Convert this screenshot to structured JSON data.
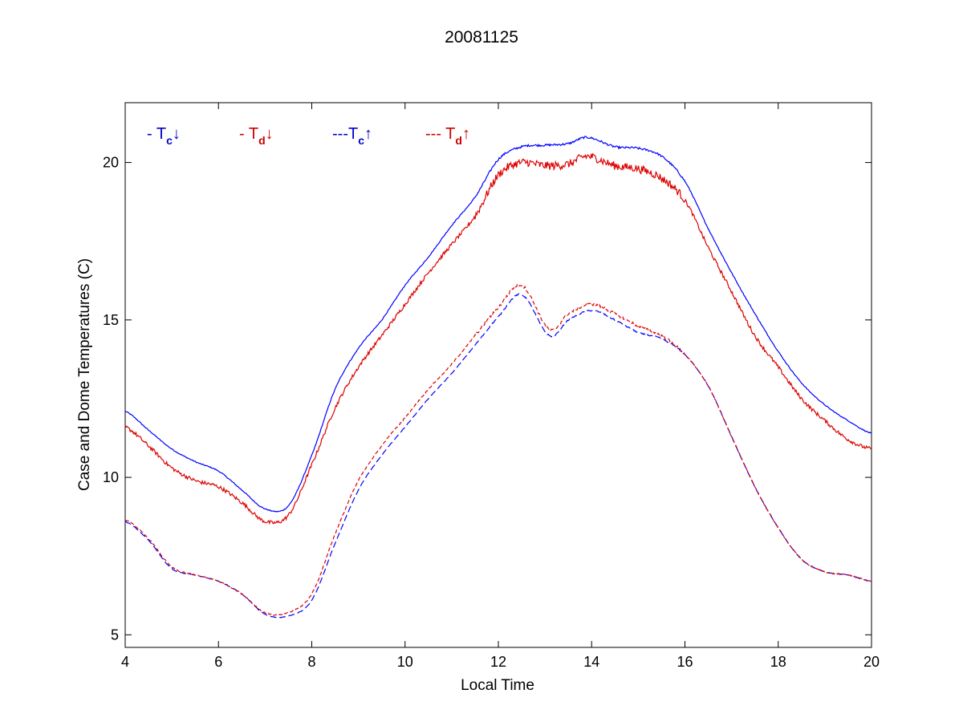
{
  "chart_data": {
    "type": "line",
    "title": "20081125",
    "xlabel": "Local Time",
    "ylabel": "Case and Dome Temperatures (C)",
    "xlim": [
      4,
      20
    ],
    "ylim": [
      4.6,
      21.9
    ],
    "xticks": [
      4,
      6,
      8,
      10,
      12,
      14,
      16,
      18,
      20
    ],
    "yticks": [
      5,
      10,
      15,
      20
    ],
    "grid": false,
    "legend_position": "top-left (horizontal, inside axes)",
    "legend": [
      {
        "prefix": "- T",
        "sub": "c",
        "arrow": "↓",
        "color": "#0000cc"
      },
      {
        "prefix": "- T",
        "sub": "d",
        "arrow": "↓",
        "color": "#cc0000"
      },
      {
        "prefix": "---T",
        "sub": "c",
        "arrow": "↑",
        "color": "#0000cc"
      },
      {
        "prefix": "--- T",
        "sub": "d",
        "arrow": "↑",
        "color": "#cc0000"
      }
    ],
    "series": [
      {
        "color": "#0000ff",
        "dash": "solid",
        "noise": 0.03,
        "x": [
          4,
          4.5,
          5,
          5.5,
          6,
          6.5,
          7,
          7.5,
          8,
          8.5,
          9,
          9.5,
          10,
          10.5,
          11,
          11.5,
          12,
          12.5,
          13,
          13.5,
          13.9,
          14.5,
          15,
          15.5,
          16,
          16.5,
          17,
          17.5,
          18,
          18.5,
          19,
          19.5,
          20
        ],
        "y": [
          12.1,
          11.5,
          10.9,
          10.5,
          10.2,
          9.6,
          9.0,
          9.1,
          10.7,
          12.8,
          14.1,
          15.0,
          16.1,
          17.0,
          18.0,
          18.9,
          20.1,
          20.5,
          20.55,
          20.6,
          20.8,
          20.5,
          20.45,
          20.2,
          19.4,
          17.9,
          16.5,
          15.2,
          14.0,
          13.0,
          12.3,
          11.8,
          11.4
        ]
      },
      {
        "color": "#dd0000",
        "dash": "solid",
        "noise": 0.12,
        "x": [
          4,
          4.5,
          5,
          5.5,
          6,
          6.5,
          7,
          7.5,
          8,
          8.5,
          9,
          9.5,
          10,
          10.5,
          11,
          11.5,
          12,
          12.5,
          13,
          13.5,
          13.9,
          14.5,
          15,
          15.5,
          16,
          16.5,
          17,
          17.5,
          18,
          18.5,
          19,
          19.5,
          20
        ],
        "y": [
          11.6,
          11.0,
          10.3,
          9.9,
          9.7,
          9.2,
          8.6,
          8.8,
          10.4,
          12.2,
          13.5,
          14.5,
          15.5,
          16.5,
          17.4,
          18.3,
          19.6,
          20.0,
          19.9,
          19.95,
          20.2,
          19.9,
          19.8,
          19.5,
          18.8,
          17.3,
          15.9,
          14.5,
          13.5,
          12.5,
          11.8,
          11.2,
          10.9
        ]
      },
      {
        "color": "#0000ff",
        "dash": "8,4",
        "noise": 0.02,
        "x": [
          4,
          4.5,
          5,
          5.5,
          6,
          6.5,
          7,
          7.5,
          8,
          8.5,
          9,
          9.5,
          10,
          10.5,
          11,
          11.5,
          12,
          12.5,
          13.1,
          13.5,
          14,
          14.5,
          15,
          15.5,
          16,
          16.5,
          17,
          17.5,
          18,
          18.5,
          19,
          19.5,
          20
        ],
        "y": [
          8.6,
          8.0,
          7.1,
          6.9,
          6.7,
          6.3,
          5.65,
          5.6,
          6.1,
          7.9,
          9.6,
          10.7,
          11.6,
          12.5,
          13.3,
          14.2,
          15.1,
          15.8,
          14.5,
          15.0,
          15.3,
          15.0,
          14.6,
          14.4,
          13.9,
          12.9,
          11.3,
          9.7,
          8.4,
          7.4,
          7.0,
          6.9,
          6.7
        ]
      },
      {
        "color": "#dd0000",
        "dash": "5,3",
        "noise": 0.04,
        "x": [
          4,
          4.5,
          5,
          5.5,
          6,
          6.5,
          7,
          7.5,
          8,
          8.5,
          9,
          9.5,
          10,
          10.5,
          11,
          11.5,
          12,
          12.5,
          13.1,
          13.5,
          14,
          14.5,
          15,
          15.5,
          16,
          16.5,
          17,
          17.5,
          18,
          18.5,
          19,
          19.5,
          20
        ],
        "y": [
          8.65,
          8.05,
          7.15,
          6.9,
          6.7,
          6.3,
          5.7,
          5.7,
          6.3,
          8.2,
          9.9,
          11.0,
          11.9,
          12.8,
          13.6,
          14.5,
          15.4,
          16.1,
          14.7,
          15.2,
          15.5,
          15.2,
          14.8,
          14.5,
          13.9,
          12.9,
          11.3,
          9.7,
          8.4,
          7.4,
          7.0,
          6.9,
          6.7
        ]
      }
    ]
  }
}
